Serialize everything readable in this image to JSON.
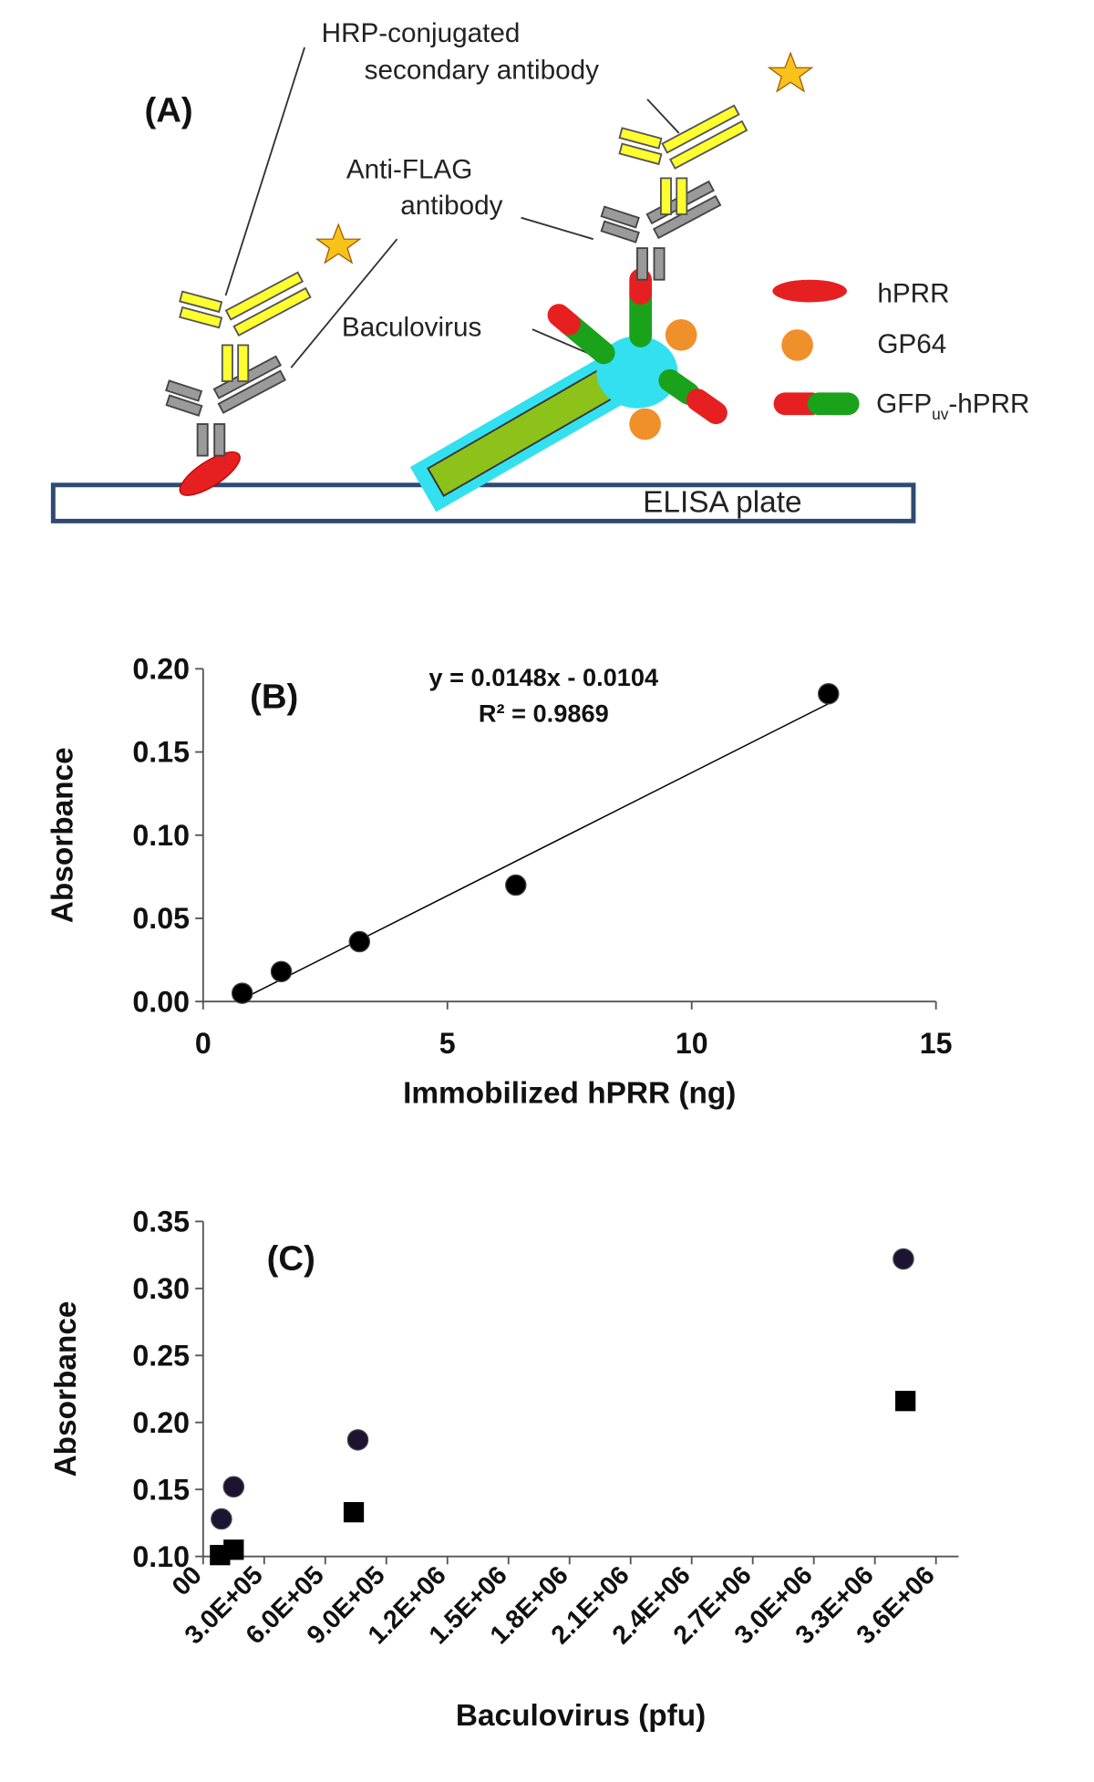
{
  "diagram": {
    "panel_label": "(A)",
    "hrp_label": [
      "HRP-conjugated",
      "secondary antibody"
    ],
    "flag_label": [
      "Anti-FLAG",
      "antibody"
    ],
    "virus_label": "Baculovirus",
    "plate_label": "ELISA plate",
    "legend": {
      "hprr": "hPRR",
      "gp64": "GP64",
      "fusion": {
        "base": "GFP",
        "sub": "uv",
        "rest": "-hPRR"
      }
    }
  },
  "chart_data": [
    {
      "type": "scatter",
      "panel_label": "(B)",
      "xlabel": "Immobilized hPRR (ng)",
      "ylabel": "Absorbance",
      "xlim": [
        0,
        15
      ],
      "ylim": [
        0,
        0.2
      ],
      "xticks": [
        0,
        5,
        10,
        15
      ],
      "yticks": [
        {
          "value": 0,
          "label": "0.00"
        },
        {
          "value": 0.05,
          "label": "0.05"
        },
        {
          "value": 0.1,
          "label": "0.10"
        },
        {
          "value": 0.15,
          "label": "0.15"
        },
        {
          "value": 0.2,
          "label": "0.20"
        }
      ],
      "series": [
        {
          "color": "#000000",
          "marker": "circle",
          "x": [
            0.8,
            1.6,
            3.2,
            6.4,
            12.8
          ],
          "values": [
            0.005,
            0.018,
            0.036,
            0.07,
            0.185
          ]
        }
      ],
      "trendline": {
        "slope": 0.0148,
        "intercept": -0.0104,
        "label": "y = 0.0148x - 0.0104",
        "r2_label": "R² = 0.9869"
      }
    },
    {
      "type": "scatter",
      "panel_label": "(C)",
      "xlabel": "Baculovirus (pfu)",
      "ylabel": "Absorbance",
      "xlim": [
        0,
        3600000
      ],
      "ylim": [
        0.1,
        0.35
      ],
      "xticks": [
        {
          "value": 0,
          "label": "00"
        },
        {
          "value": 300000,
          "label": "3.0E+05"
        },
        {
          "value": 600000,
          "label": "6.0E+05"
        },
        {
          "value": 900000,
          "label": "9.0E+05"
        },
        {
          "value": 1200000,
          "label": "1.2E+06"
        },
        {
          "value": 1500000,
          "label": "1.5E+06"
        },
        {
          "value": 1800000,
          "label": "1.8E+06"
        },
        {
          "value": 2100000,
          "label": "2.1E+06"
        },
        {
          "value": 2400000,
          "label": "2.4E+06"
        },
        {
          "value": 2700000,
          "label": "2.7E+06"
        },
        {
          "value": 3000000,
          "label": "3.0E+06"
        },
        {
          "value": 3300000,
          "label": "3.3E+06"
        },
        {
          "value": 3600000,
          "label": "3.6E+06"
        }
      ],
      "yticks": [
        {
          "value": 0.1,
          "label": "0.10"
        },
        {
          "value": 0.15,
          "label": "0.15"
        },
        {
          "value": 0.2,
          "label": "0.20"
        },
        {
          "value": 0.25,
          "label": "0.25"
        },
        {
          "value": 0.3,
          "label": "0.30"
        },
        {
          "value": 0.35,
          "label": "0.35"
        }
      ],
      "series": [
        {
          "color": "#1c1430",
          "marker": "circle",
          "x": [
            90000,
            150000,
            760000,
            3440000
          ],
          "values": [
            0.128,
            0.152,
            0.187,
            0.322
          ]
        },
        {
          "color": "#000000",
          "marker": "square",
          "x": [
            83000,
            150000,
            740000,
            3450000
          ],
          "values": [
            0.101,
            0.105,
            0.133,
            0.216
          ]
        }
      ]
    }
  ]
}
